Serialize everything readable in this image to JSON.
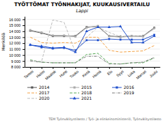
{
  "chart_data": {
    "type": "line",
    "title": "TYÖTTÖMAT TYÖNHAKIJAT, KUUKAUSIVERTAILU",
    "subtitle": "Lappi",
    "ylabel": "Henkilöä",
    "footer": "TEM Työnvälitystilasto / Työ- ja elinkeinoministeriö, Työnvälitystilasto",
    "categories": [
      "Tammi",
      "Helmi",
      "Maalisk",
      "Huhti",
      "Touko",
      "Kesä",
      "Heinä",
      "Elo",
      "Syys",
      "Loka",
      "Marras",
      "Joulu"
    ],
    "ylim": [
      8000,
      16500
    ],
    "yticks": [
      {
        "value": 8000,
        "label": "8 000"
      },
      {
        "value": 9000,
        "label": "9 000"
      },
      {
        "value": 10000,
        "label": "10 000"
      },
      {
        "value": 11000,
        "label": "11 000"
      },
      {
        "value": 12000,
        "label": "12 000"
      },
      {
        "value": 13000,
        "label": "13 000"
      },
      {
        "value": 14000,
        "label": "14 000"
      },
      {
        "value": 15000,
        "label": "15 000"
      },
      {
        "value": 16000,
        "label": "16 000"
      }
    ],
    "grid": true,
    "series": [
      {
        "name": "2014",
        "color": "#555555",
        "line_style": "solid",
        "marker": "square",
        "values": [
          14100,
          13700,
          13200,
          13200,
          13200,
          14700,
          14800,
          13200,
          13100,
          13200,
          13200,
          14600
        ]
      },
      {
        "name": "2015",
        "color": "#aaaaaa",
        "line_style": "solid",
        "marker": "square",
        "values": [
          14200,
          13800,
          13300,
          13300,
          13100,
          14600,
          14900,
          13200,
          13000,
          13200,
          13100,
          14500
        ]
      },
      {
        "name": "2016",
        "color": "#1f4fcc",
        "line_style": "solid",
        "marker": "square",
        "values": [
          11700,
          11300,
          11100,
          11200,
          10800,
          12500,
          12500,
          12700,
          12600,
          12600,
          12600,
          13400
        ]
      },
      {
        "name": "2017",
        "color": "#f4a040",
        "line_style": "dashed",
        "marker": "none",
        "values": [
          13000,
          12100,
          12000,
          12100,
          12000,
          13000,
          13000,
          10800,
          10500,
          10600,
          10700,
          11600
        ]
      },
      {
        "name": "2018",
        "color": "#55aa55",
        "line_style": "dashed",
        "marker": "none",
        "values": [
          9200,
          8800,
          8700,
          8700,
          8700,
          10100,
          10300,
          8600,
          8500,
          8700,
          8700,
          9500
        ]
      },
      {
        "name": "2019",
        "color": "#777777",
        "line_style": "dashdot",
        "marker": "none",
        "values": [
          9000,
          8800,
          8700,
          8700,
          8700,
          9800,
          9800,
          8500,
          8500,
          8700,
          8800,
          9600
        ]
      },
      {
        "name": "2020",
        "color": "#bbbbbb",
        "line_style": "dashed",
        "marker": "none",
        "values": [
          9100,
          8900,
          15900,
          15500,
          10500,
          13000,
          14700,
          13800,
          13100,
          13200,
          13200,
          14400
        ]
      },
      {
        "name": "2021",
        "color": "#1f4fcc",
        "line_style": "solid",
        "marker": "triangle",
        "values": [
          11700,
          11500,
          11200,
          11300,
          10500,
          14000,
          14700,
          14700,
          14800,
          12100,
          12100,
          13200
        ]
      }
    ]
  }
}
